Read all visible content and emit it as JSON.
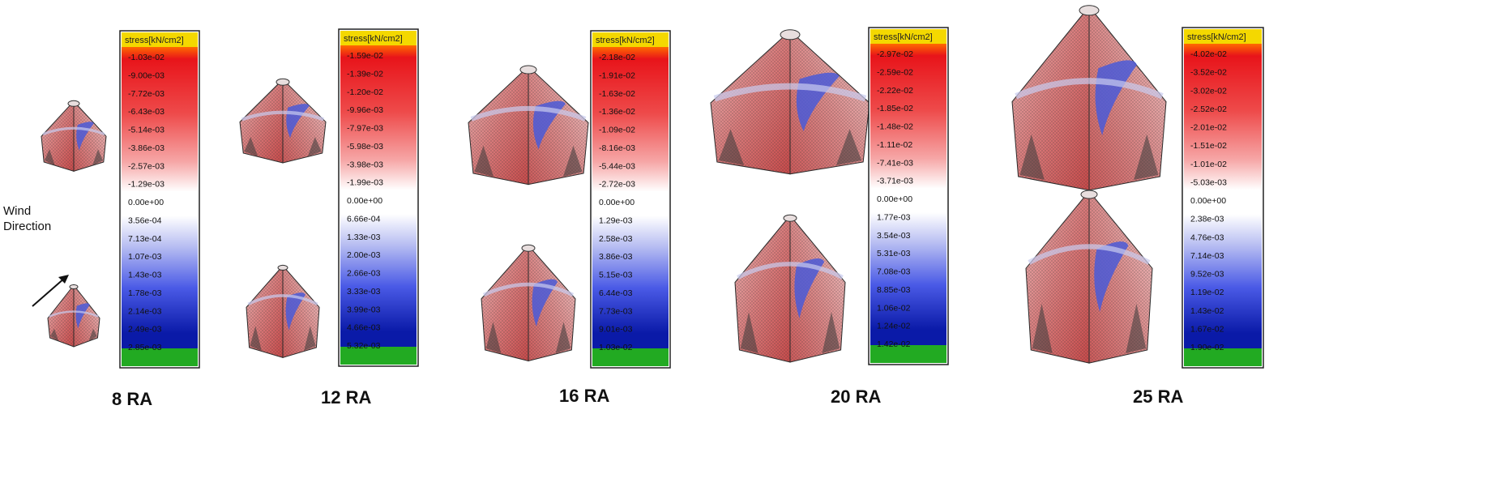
{
  "wind": {
    "line1": "Wind",
    "line2": "Direction"
  },
  "colors": {
    "header": "#f4d800",
    "red": "#e02020",
    "white": "#ffffff",
    "blue": "#1f2fd8",
    "darkblue": "#0a14a8",
    "green": "#22aa22",
    "frame": "#222222",
    "mesh_red": "#e88a8a",
    "mesh_blue": "#5566dd"
  },
  "panels": [
    {
      "case_label": "8 RA",
      "scale_title": "stress[kN/cm2]",
      "ticks": [
        "-1.03e-02",
        "-9.00e-03",
        "-7.72e-03",
        "-6.43e-03",
        "-5.14e-03",
        "-3.86e-03",
        "-2.57e-03",
        "-1.29e-03",
        "0.00e+00",
        "3.56e-04",
        "7.13e-04",
        "1.07e-03",
        "1.43e-03",
        "1.78e-03",
        "2.14e-03",
        "2.49e-03",
        "2.85e-03"
      ]
    },
    {
      "case_label": "12 RA",
      "scale_title": "stress[kN/cm2]",
      "ticks": [
        "-1.59e-02",
        "-1.39e-02",
        "-1.20e-02",
        "-9.96e-03",
        "-7.97e-03",
        "-5.98e-03",
        "-3.98e-03",
        "-1.99e-03",
        "0.00e+00",
        "6.66e-04",
        "1.33e-03",
        "2.00e-03",
        "2.66e-03",
        "3.33e-03",
        "3.99e-03",
        "4.66e-03",
        "5.32e-03"
      ]
    },
    {
      "case_label": "16 RA",
      "scale_title": "stress[kN/cm2]",
      "ticks": [
        "-2.18e-02",
        "-1.91e-02",
        "-1.63e-02",
        "-1.36e-02",
        "-1.09e-02",
        "-8.16e-03",
        "-5.44e-03",
        "-2.72e-03",
        "0.00e+00",
        "1.29e-03",
        "2.58e-03",
        "3.86e-03",
        "5.15e-03",
        "6.44e-03",
        "7.73e-03",
        "9.01e-03",
        "1.03e-02"
      ]
    },
    {
      "case_label": "20 RA",
      "scale_title": "stress[kN/cm2]",
      "ticks": [
        "-2.97e-02",
        "-2.59e-02",
        "-2.22e-02",
        "-1.85e-02",
        "-1.48e-02",
        "-1.11e-02",
        "-7.41e-03",
        "-3.71e-03",
        "0.00e+00",
        "1.77e-03",
        "3.54e-03",
        "5.31e-03",
        "7.08e-03",
        "8.85e-03",
        "1.06e-02",
        "1.24e-02",
        "1.42e-02"
      ]
    },
    {
      "case_label": "25 RA",
      "scale_title": "stress[kN/cm2]",
      "ticks": [
        "-4.02e-02",
        "-3.52e-02",
        "-3.02e-02",
        "-2.52e-02",
        "-2.01e-02",
        "-1.51e-02",
        "-1.01e-02",
        "-5.03e-03",
        "0.00e+00",
        "2.38e-03",
        "4.76e-03",
        "7.14e-03",
        "9.52e-03",
        "1.19e-02",
        "1.43e-02",
        "1.67e-02",
        "1.90e-02"
      ]
    }
  ]
}
